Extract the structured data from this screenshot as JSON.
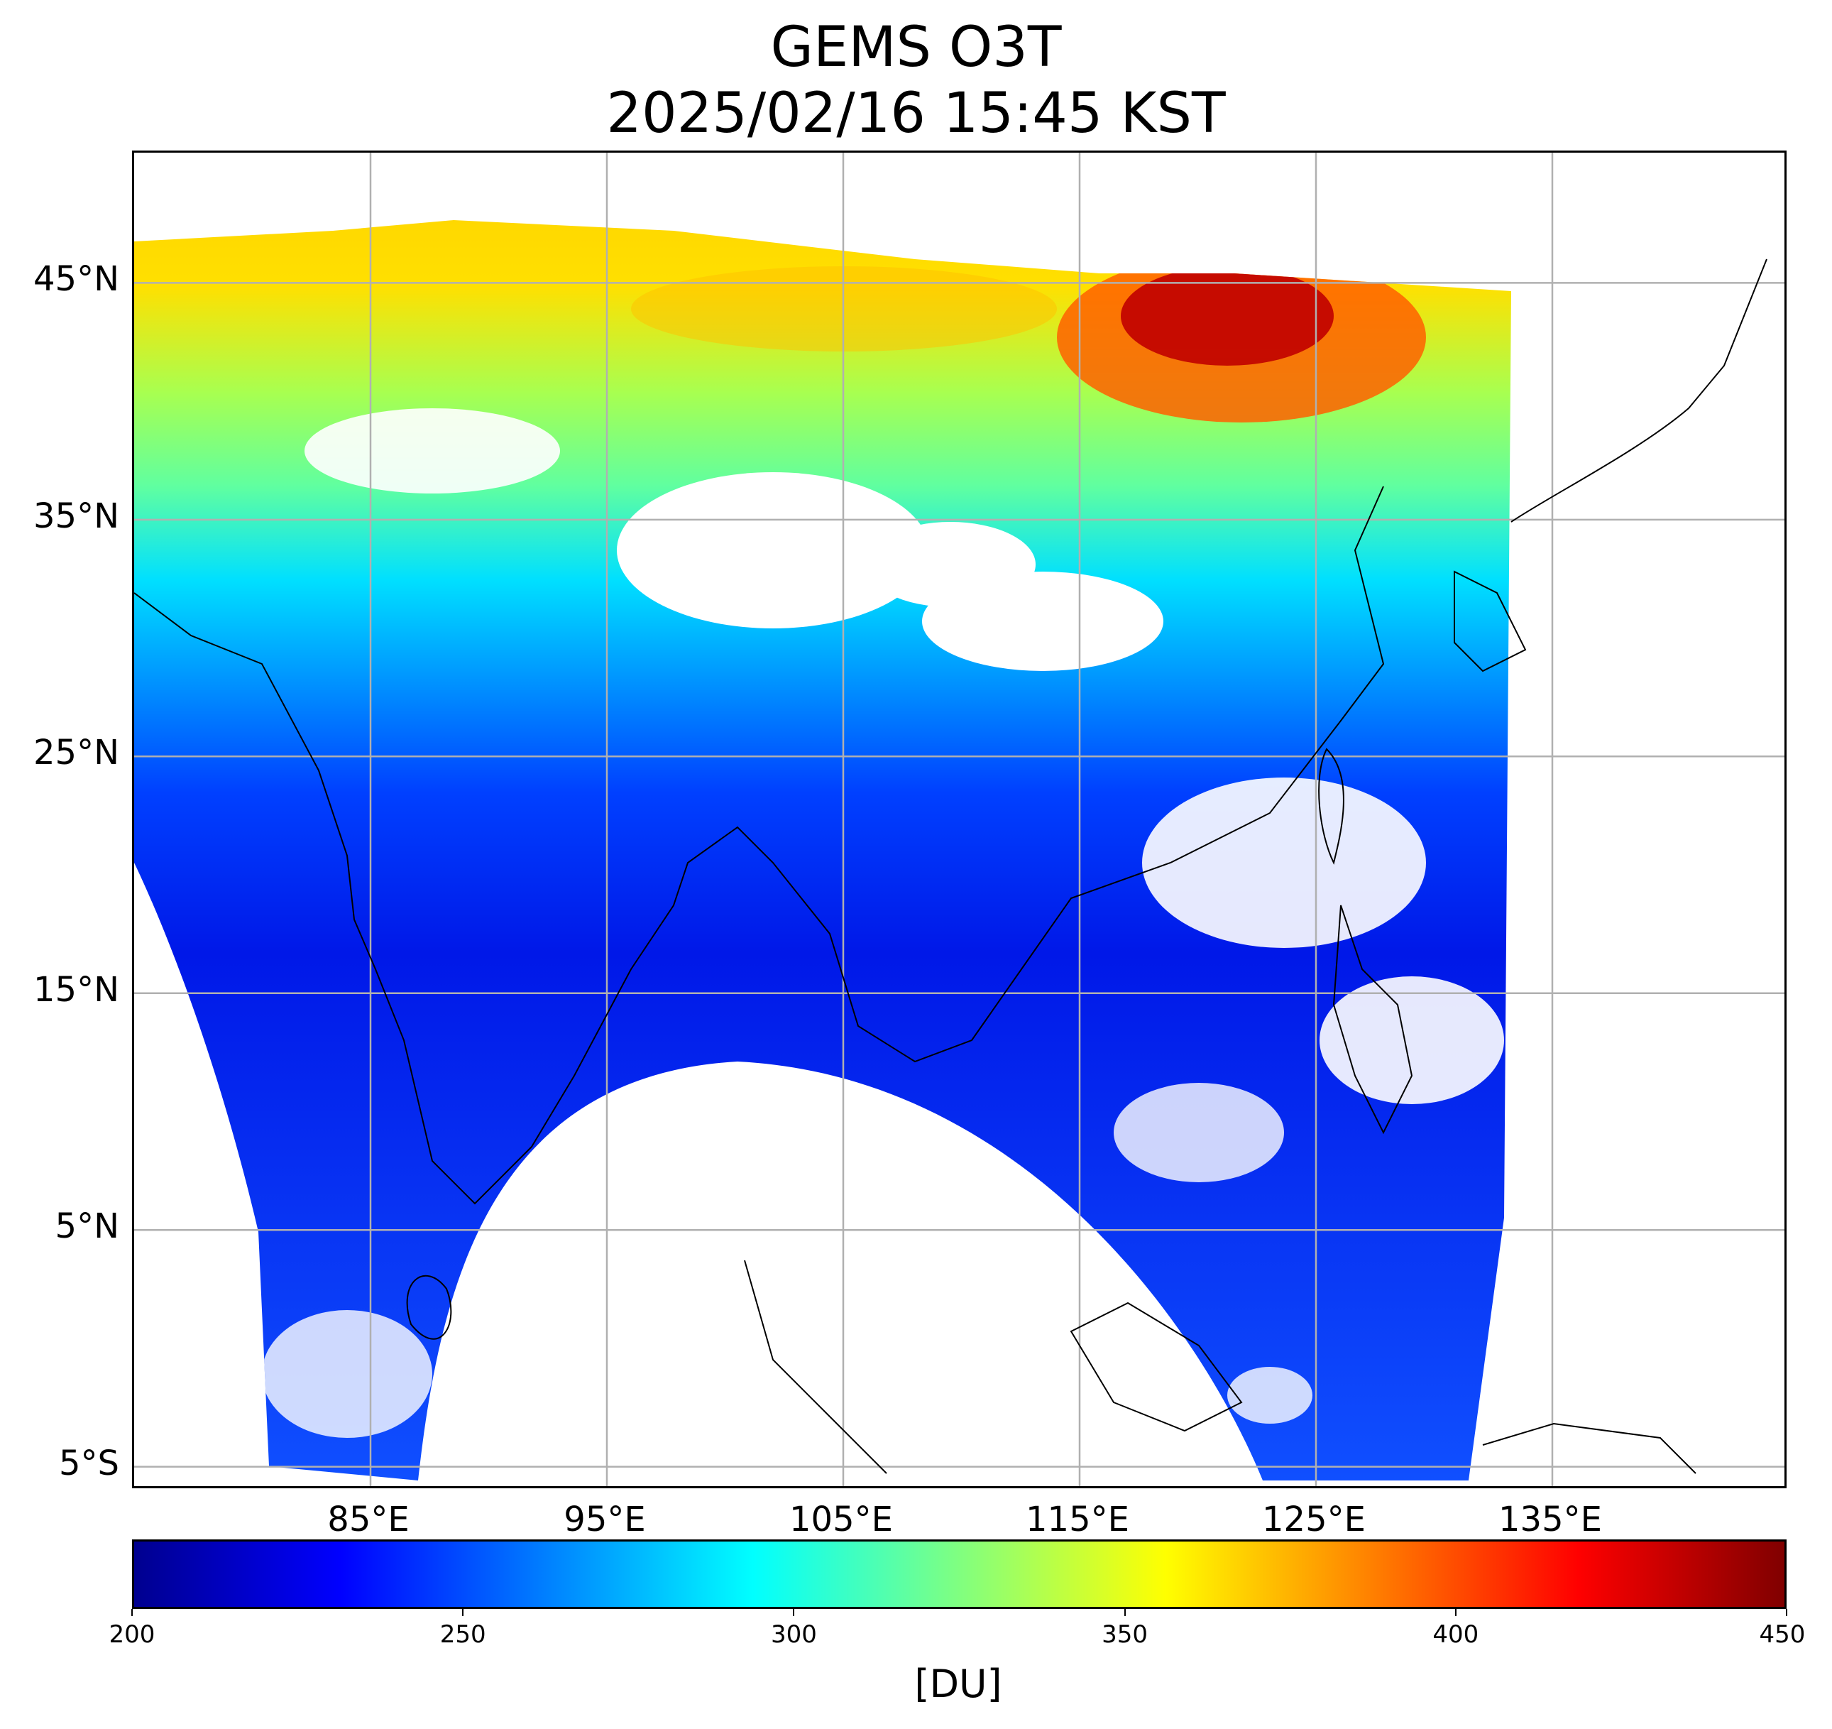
{
  "title": {
    "line1": "GEMS O3T",
    "line2": "2025/02/16 15:45 KST"
  },
  "map": {
    "lat_ticks": [
      {
        "value": 45,
        "label": "45°N"
      },
      {
        "value": 35,
        "label": "35°N"
      },
      {
        "value": 25,
        "label": "25°N"
      },
      {
        "value": 15,
        "label": "15°N"
      },
      {
        "value": 5,
        "label": "5°N"
      },
      {
        "value": -5,
        "label": "5°S"
      }
    ],
    "lon_ticks": [
      {
        "value": 85,
        "label": "85°E"
      },
      {
        "value": 95,
        "label": "95°E"
      },
      {
        "value": 105,
        "label": "105°E"
      },
      {
        "value": 115,
        "label": "115°E"
      },
      {
        "value": 125,
        "label": "125°E"
      },
      {
        "value": 135,
        "label": "135°E"
      }
    ],
    "lon_range": [
      75,
      145
    ],
    "lat_range": [
      -6,
      50.5
    ],
    "grid": true
  },
  "colorbar": {
    "label": "[DU]",
    "min": 200,
    "max": 450,
    "colormap": "jet",
    "ticks": [
      "200",
      "250",
      "300",
      "350",
      "400",
      "450"
    ],
    "colors": [
      "#00008f",
      "#0000ff",
      "#0080ff",
      "#00ffff",
      "#80ff80",
      "#ffff00",
      "#ff8000",
      "#ff0000",
      "#800000"
    ]
  }
}
